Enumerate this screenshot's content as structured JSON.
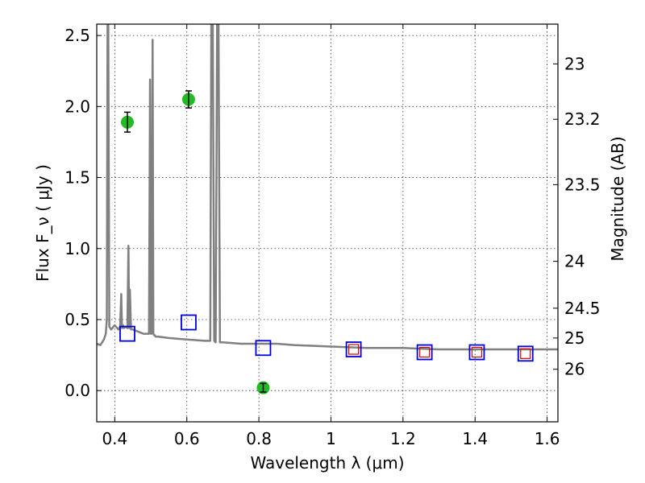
{
  "chart_data": {
    "type": "scatter",
    "xlabel": "Wavelength  λ (μm)",
    "ylabel": "Flux  F_ν  ( μJy )",
    "y2label": "Magnitude (AB)",
    "xlim": [
      0.35,
      1.63
    ],
    "ylim": [
      -0.22,
      2.58
    ],
    "grid": true,
    "x_ticks": [
      0.4,
      0.6,
      0.8,
      1.0,
      1.2,
      1.4,
      1.6
    ],
    "x_tick_labels": [
      "0.4",
      "0.6",
      "0.8",
      "1",
      "1.2",
      "1.4",
      "1.6"
    ],
    "y_ticks": [
      0.0,
      0.5,
      1.0,
      1.5,
      2.0,
      2.5
    ],
    "y_tick_labels": [
      "0.0",
      "0.5",
      "1.0",
      "1.5",
      "2.0",
      "2.5"
    ],
    "y2_ticks": [
      {
        "label": "23",
        "flux": 2.3
      },
      {
        "label": "23.2",
        "flux": 1.91
      },
      {
        "label": "23.5",
        "flux": 1.45
      },
      {
        "label": "24",
        "flux": 0.91
      },
      {
        "label": "24.5",
        "flux": 0.58
      },
      {
        "label": "25",
        "flux": 0.37
      },
      {
        "label": "26",
        "flux": 0.15
      }
    ],
    "colors": {
      "model": "#808080",
      "observed": "#22bb22",
      "model_photometry": "#0000dd",
      "secondary_photometry": "#dd0000"
    },
    "series": [
      {
        "kind": "model_spectrum",
        "x": [
          0.35,
          0.36,
          0.37,
          0.375,
          0.378,
          0.38,
          0.382,
          0.385,
          0.39,
          0.4,
          0.41,
          0.415,
          0.418,
          0.42,
          0.423,
          0.425,
          0.43,
          0.435,
          0.438,
          0.44,
          0.442,
          0.445,
          0.45,
          0.46,
          0.47,
          0.48,
          0.49,
          0.495,
          0.498,
          0.5,
          0.502,
          0.505,
          0.507,
          0.509,
          0.511,
          0.513,
          0.52,
          0.55,
          0.6,
          0.65,
          0.66,
          0.665,
          0.668,
          0.672,
          0.676,
          0.68,
          0.684,
          0.688,
          0.692,
          0.7,
          0.75,
          0.8,
          0.85,
          0.9,
          1.0,
          1.1,
          1.2,
          1.3,
          1.4,
          1.5,
          1.63
        ],
        "y": [
          0.33,
          0.32,
          0.36,
          0.4,
          0.5,
          2.58,
          2.58,
          0.45,
          0.43,
          0.46,
          0.43,
          0.45,
          0.68,
          0.44,
          0.46,
          0.44,
          0.45,
          0.44,
          1.02,
          0.44,
          0.71,
          0.43,
          0.43,
          0.42,
          0.41,
          0.4,
          0.4,
          0.4,
          2.19,
          0.4,
          0.4,
          2.47,
          0.4,
          0.39,
          0.39,
          0.38,
          0.38,
          0.37,
          0.36,
          0.35,
          0.35,
          0.35,
          2.58,
          2.58,
          0.35,
          0.34,
          2.58,
          2.58,
          0.34,
          0.34,
          0.33,
          0.33,
          0.33,
          0.32,
          0.31,
          0.3,
          0.3,
          0.29,
          0.29,
          0.29,
          0.29
        ]
      },
      {
        "kind": "observed",
        "name": "",
        "x": [
          0.435,
          0.605,
          0.812
        ],
        "y": [
          1.89,
          2.05,
          0.02
        ],
        "yerr": [
          0.07,
          0.06,
          0.03
        ]
      },
      {
        "kind": "model_photometry",
        "x": [
          0.435,
          0.605,
          0.812,
          1.063,
          1.26,
          1.405,
          1.54
        ],
        "y": [
          0.4,
          0.48,
          0.3,
          0.29,
          0.27,
          0.27,
          0.26
        ]
      },
      {
        "kind": "secondary_photometry",
        "x": [
          1.063,
          1.26,
          1.405,
          1.54
        ],
        "y": [
          0.29,
          0.27,
          0.27,
          0.26
        ]
      }
    ]
  }
}
